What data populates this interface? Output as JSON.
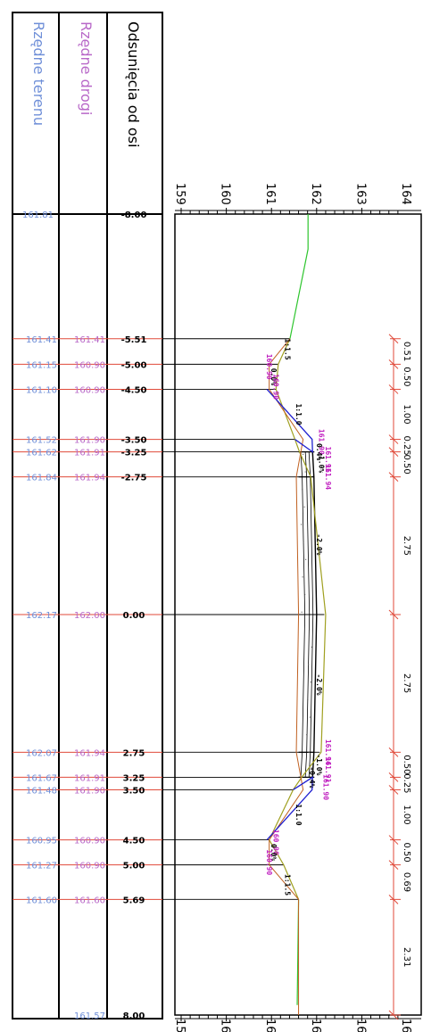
{
  "headers": {
    "offset": "Odsunięcia od osi",
    "road": "Rzędne drogi",
    "terrain": "Rzędne terenu"
  },
  "colors": {
    "terrain_text": "#6f8fd8",
    "road_text": "#b868c8",
    "offset_text": "#000000",
    "dimension": "#e04a3a",
    "terrain_line": "#2ec52e",
    "design_line": "#a0a020",
    "slope_line": "#2020d0",
    "layer_line": "#c06020",
    "annotation": "#c020c0"
  },
  "axis": {
    "min": 159,
    "max": 164,
    "tick_labels": [
      "159",
      "160",
      "161",
      "162",
      "163",
      "164"
    ]
  },
  "stations": [
    {
      "offset": -8.0,
      "offset_label": "-8.00",
      "terrain": 161.81,
      "terrain_label": "161.81",
      "road": null,
      "road_label": ""
    },
    {
      "offset": -5.51,
      "offset_label": "-5.51",
      "terrain": 161.41,
      "terrain_label": "161.41",
      "road": 161.41,
      "road_label": "161.41"
    },
    {
      "offset": -5.0,
      "offset_label": "-5.00",
      "terrain": 161.15,
      "terrain_label": "161.15",
      "road": 160.9,
      "road_label": "160.90"
    },
    {
      "offset": -4.5,
      "offset_label": "-4.50",
      "terrain": 161.1,
      "terrain_label": "161.10",
      "road": 160.9,
      "road_label": "160.90"
    },
    {
      "offset": -3.5,
      "offset_label": "-3.50",
      "terrain": 161.52,
      "terrain_label": "161.52",
      "road": 161.9,
      "road_label": "161.90"
    },
    {
      "offset": -3.25,
      "offset_label": "-3.25",
      "terrain": 161.62,
      "terrain_label": "161.62",
      "road": 161.91,
      "road_label": "161.91"
    },
    {
      "offset": -2.75,
      "offset_label": "-2.75",
      "terrain": 161.84,
      "terrain_label": "161.84",
      "road": 161.94,
      "road_label": "161.94"
    },
    {
      "offset": 0.0,
      "offset_label": "0.00",
      "terrain": 162.17,
      "terrain_label": "162.17",
      "road": 162.0,
      "road_label": "162.00"
    },
    {
      "offset": 2.75,
      "offset_label": "2.75",
      "terrain": 162.07,
      "terrain_label": "162.07",
      "road": 161.94,
      "road_label": "161.94"
    },
    {
      "offset": 3.25,
      "offset_label": "3.25",
      "terrain": 161.67,
      "terrain_label": "161.67",
      "road": 161.91,
      "road_label": "161.91"
    },
    {
      "offset": 3.5,
      "offset_label": "3.50",
      "terrain": 161.48,
      "terrain_label": "161.48",
      "road": 161.9,
      "road_label": "161.90"
    },
    {
      "offset": 4.5,
      "offset_label": "4.50",
      "terrain": 160.95,
      "terrain_label": "160.95",
      "road": 160.9,
      "road_label": "160.90"
    },
    {
      "offset": 5.0,
      "offset_label": "5.00",
      "terrain": 161.27,
      "terrain_label": "161.27",
      "road": 160.9,
      "road_label": "160.90"
    },
    {
      "offset": 5.69,
      "offset_label": "5.69",
      "terrain": 161.6,
      "terrain_label": "161.60",
      "road": 161.6,
      "road_label": "161.60"
    },
    {
      "offset": 8.0,
      "offset_label": "8.00",
      "terrain": 161.57,
      "terrain_label": "161.57",
      "road": null,
      "road_label": ""
    }
  ],
  "dimensions": [
    {
      "from": -5.51,
      "to": -5.0,
      "label": "0.51"
    },
    {
      "from": -5.0,
      "to": -4.5,
      "label": "0.50"
    },
    {
      "from": -4.5,
      "to": -3.5,
      "label": "1.00"
    },
    {
      "from": -3.5,
      "to": -3.25,
      "label": "0.25"
    },
    {
      "from": -3.25,
      "to": -2.75,
      "label": "0.50"
    },
    {
      "from": -2.75,
      "to": 0.0,
      "label": "2.75"
    },
    {
      "from": 0.0,
      "to": 2.75,
      "label": "2.75"
    },
    {
      "from": 2.75,
      "to": 3.25,
      "label": "0.50"
    },
    {
      "from": 3.25,
      "to": 3.5,
      "label": "0.25"
    },
    {
      "from": 3.5,
      "to": 4.5,
      "label": "1.00"
    },
    {
      "from": 4.5,
      "to": 5.0,
      "label": "0.50"
    },
    {
      "from": 5.0,
      "to": 5.69,
      "label": "0.69"
    },
    {
      "from": 5.69,
      "to": 8.0,
      "label": "2.31"
    }
  ],
  "profile_annotations": [
    {
      "offset": -5.3,
      "elev": 161.3,
      "text": "1:1.5"
    },
    {
      "offset": -4.95,
      "elev": 160.9,
      "text": "160.90"
    },
    {
      "offset": -4.75,
      "elev": 161.0,
      "text": "0.0%"
    },
    {
      "offset": -4.55,
      "elev": 161.05,
      "text": "160.90"
    },
    {
      "offset": -4.0,
      "elev": 161.55,
      "text": "1:1.0"
    },
    {
      "offset": -3.45,
      "elev": 162.05,
      "text": "161.90"
    },
    {
      "offset": -3.25,
      "elev": 162.0,
      "text": "0.4%"
    },
    {
      "offset": -3.0,
      "elev": 162.05,
      "text": "1.0%"
    },
    {
      "offset": -3.1,
      "elev": 162.2,
      "text": "161.91"
    },
    {
      "offset": -2.75,
      "elev": 162.2,
      "text": "161.94"
    },
    {
      "offset": -1.4,
      "elev": 162.0,
      "text": "-2.0%"
    },
    {
      "offset": 1.4,
      "elev": 162.0,
      "text": "-2.0%"
    },
    {
      "offset": 2.75,
      "elev": 162.2,
      "text": "161.94"
    },
    {
      "offset": 3.0,
      "elev": 162.0,
      "text": "-1.0%"
    },
    {
      "offset": 3.25,
      "elev": 161.85,
      "text": "-0.4%"
    },
    {
      "offset": 3.1,
      "elev": 162.2,
      "text": "161.91"
    },
    {
      "offset": 3.45,
      "elev": 162.15,
      "text": "161.90"
    },
    {
      "offset": 4.0,
      "elev": 161.55,
      "text": "1:1.0"
    },
    {
      "offset": 4.55,
      "elev": 161.05,
      "text": "160.90"
    },
    {
      "offset": 4.75,
      "elev": 161.0,
      "text": "0.0%"
    },
    {
      "offset": 4.95,
      "elev": 160.9,
      "text": "160.90"
    },
    {
      "offset": 5.4,
      "elev": 161.3,
      "text": "1:1.5"
    }
  ]
}
